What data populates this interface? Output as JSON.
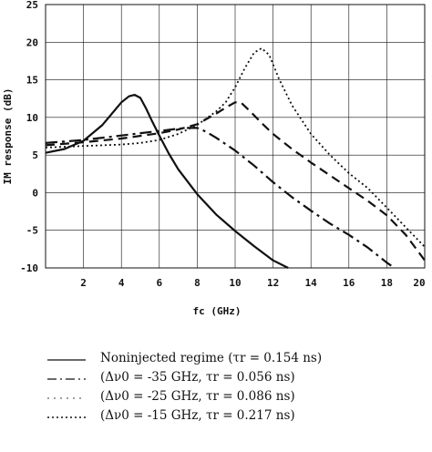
{
  "chart_data": {
    "type": "line",
    "title": "",
    "xlabel": "fc (GHz)",
    "ylabel": "IM response (dB)",
    "xlim": [
      0,
      20
    ],
    "ylim": [
      -10,
      25
    ],
    "x_ticks": [
      "2",
      "4",
      "6",
      "8",
      "10",
      "12",
      "14",
      "16",
      "18",
      "20"
    ],
    "y_ticks": [
      "25",
      "20",
      "15",
      "10",
      "5",
      "0",
      "-5",
      "-10"
    ],
    "grid": true,
    "legend_position": "below",
    "series": [
      {
        "name": "Noninjected regime (τr = 0.154 ns)",
        "style": "solid",
        "x": [
          0,
          1,
          2,
          3,
          3.5,
          4,
          4.4,
          4.7,
          5,
          5.3,
          5.6,
          6,
          6.5,
          7,
          8,
          9,
          10,
          11,
          12,
          12.8
        ],
        "y": [
          5.3,
          5.8,
          6.9,
          9.0,
          10.5,
          12.0,
          12.8,
          13.0,
          12.6,
          11.2,
          9.6,
          7.6,
          5.2,
          3.1,
          -0.2,
          -2.9,
          -5.1,
          -7.1,
          -9.0,
          -10
        ]
      },
      {
        "name": "(Δν0 = -35 GHz, τr = 0.056 ns)",
        "style": "dashdot",
        "x": [
          0,
          2,
          4,
          6,
          7,
          7.5,
          8,
          8.3,
          8.6,
          9,
          10,
          11,
          12,
          13,
          14,
          15,
          16,
          17,
          18,
          18.4
        ],
        "y": [
          6.6,
          7.0,
          7.6,
          8.2,
          8.5,
          8.6,
          8.6,
          8.3,
          7.9,
          7.3,
          5.6,
          3.6,
          1.4,
          -0.6,
          -2.4,
          -4.1,
          -5.6,
          -7.3,
          -9.3,
          -10
        ]
      },
      {
        "name": "(Δν0 = -25 GHz, τr = 0.086 ns)",
        "style": "dashed",
        "x": [
          0,
          2,
          4,
          6,
          7,
          8,
          9,
          9.5,
          10,
          10.3,
          10.8,
          11.5,
          12,
          13,
          14,
          15,
          16,
          17,
          18,
          19,
          20
        ],
        "y": [
          6.3,
          6.7,
          7.2,
          7.9,
          8.4,
          9.1,
          10.5,
          11.3,
          12.0,
          12.0,
          10.8,
          9.0,
          7.8,
          5.8,
          4.0,
          2.3,
          0.6,
          -1.1,
          -3.0,
          -5.6,
          -9.0
        ]
      },
      {
        "name": "(Δν0 = -15 GHz, τr = 0.217 ns)",
        "style": "dotted",
        "x": [
          0,
          2,
          4,
          5,
          6,
          7,
          8,
          9,
          9.5,
          10,
          10.5,
          11,
          11.4,
          11.8,
          12.3,
          13,
          14,
          15,
          16,
          17,
          18,
          19,
          20
        ],
        "y": [
          6.0,
          6.2,
          6.4,
          6.6,
          7.0,
          7.8,
          9.0,
          10.8,
          12.0,
          14.0,
          16.5,
          18.6,
          19.2,
          18.3,
          15.2,
          11.6,
          7.8,
          5.0,
          2.6,
          0.6,
          -2.0,
          -4.6,
          -7.2
        ]
      }
    ]
  }
}
